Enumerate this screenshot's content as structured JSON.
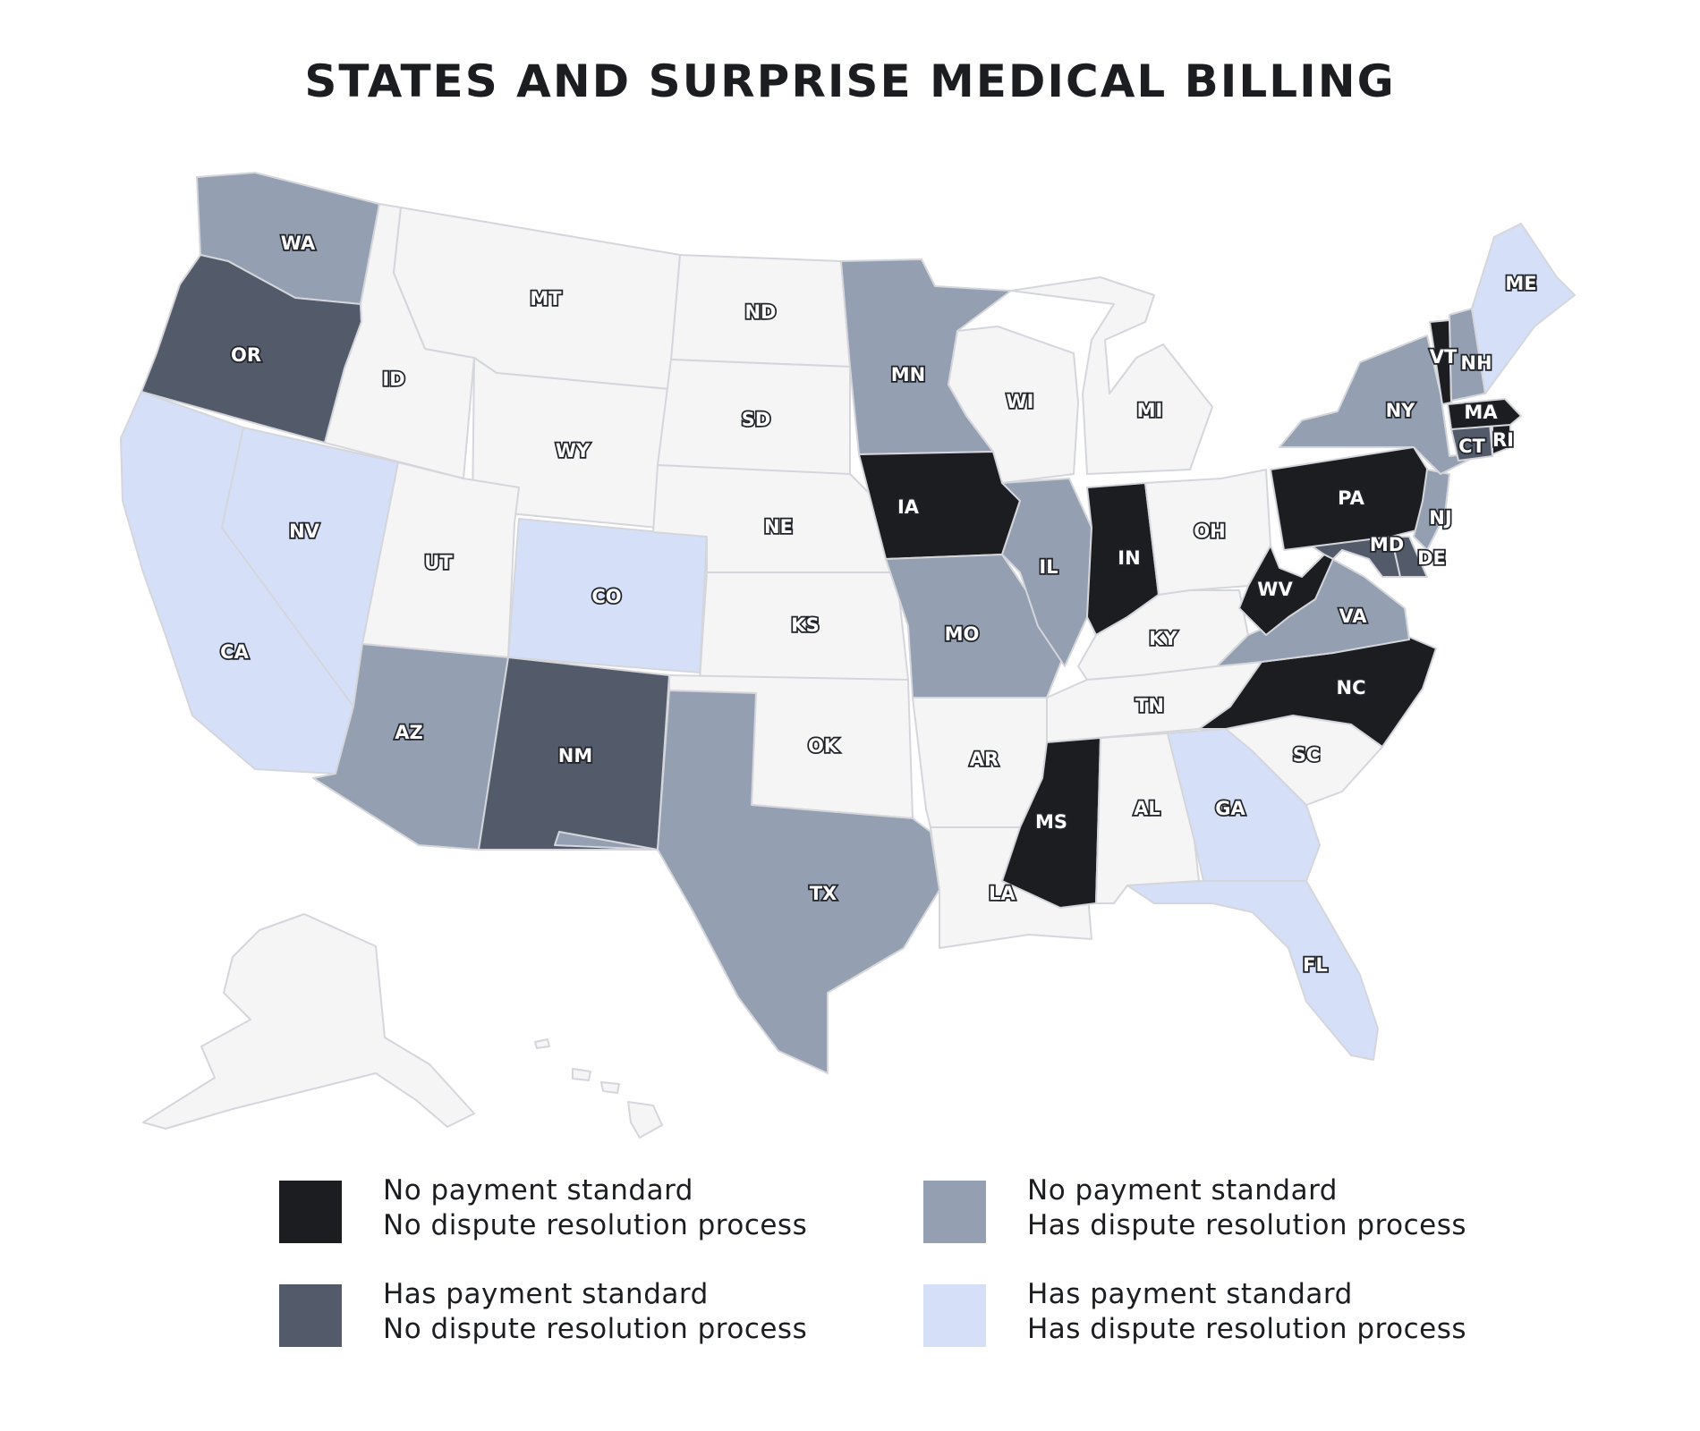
{
  "title": "STATES AND SURPRISE MEDICAL BILLING",
  "colors": {
    "none": "#f5f5f6",
    "no_pay_no_dispute": "#1b1d21",
    "has_pay_no_dispute": "#535a69",
    "no_pay_has_dispute": "#949fb1",
    "has_pay_has_dispute": "#d5e0f8"
  },
  "legend": [
    {
      "category": "no_pay_no_dispute",
      "line1": "No payment standard",
      "line2": "No dispute resolution process"
    },
    {
      "category": "no_pay_has_dispute",
      "line1": "No payment standard",
      "line2": "Has dispute resolution process"
    },
    {
      "category": "has_pay_no_dispute",
      "line1": "Has payment standard",
      "line2": "No dispute resolution process"
    },
    {
      "category": "has_pay_has_dispute",
      "line1": "Has payment standard",
      "line2": "Has dispute resolution process"
    }
  ],
  "states": [
    {
      "abbr": "WA",
      "category": "no_pay_has_dispute"
    },
    {
      "abbr": "OR",
      "category": "has_pay_no_dispute"
    },
    {
      "abbr": "CA",
      "category": "has_pay_has_dispute"
    },
    {
      "abbr": "NV",
      "category": "has_pay_has_dispute"
    },
    {
      "abbr": "ID",
      "category": "none"
    },
    {
      "abbr": "MT",
      "category": "none"
    },
    {
      "abbr": "WY",
      "category": "none"
    },
    {
      "abbr": "UT",
      "category": "none"
    },
    {
      "abbr": "AZ",
      "category": "no_pay_has_dispute"
    },
    {
      "abbr": "CO",
      "category": "has_pay_has_dispute"
    },
    {
      "abbr": "NM",
      "category": "has_pay_no_dispute"
    },
    {
      "abbr": "ND",
      "category": "none"
    },
    {
      "abbr": "SD",
      "category": "none"
    },
    {
      "abbr": "NE",
      "category": "none"
    },
    {
      "abbr": "KS",
      "category": "none"
    },
    {
      "abbr": "OK",
      "category": "none"
    },
    {
      "abbr": "TX",
      "category": "no_pay_has_dispute"
    },
    {
      "abbr": "MN",
      "category": "no_pay_has_dispute"
    },
    {
      "abbr": "IA",
      "category": "no_pay_no_dispute"
    },
    {
      "abbr": "MO",
      "category": "no_pay_has_dispute"
    },
    {
      "abbr": "AR",
      "category": "none"
    },
    {
      "abbr": "LA",
      "category": "none"
    },
    {
      "abbr": "WI",
      "category": "none"
    },
    {
      "abbr": "IL",
      "category": "no_pay_has_dispute"
    },
    {
      "abbr": "MI",
      "category": "none"
    },
    {
      "abbr": "IN",
      "category": "no_pay_no_dispute"
    },
    {
      "abbr": "OH",
      "category": "none"
    },
    {
      "abbr": "KY",
      "category": "none"
    },
    {
      "abbr": "TN",
      "category": "none"
    },
    {
      "abbr": "MS",
      "category": "no_pay_no_dispute"
    },
    {
      "abbr": "AL",
      "category": "none"
    },
    {
      "abbr": "GA",
      "category": "has_pay_has_dispute"
    },
    {
      "abbr": "FL",
      "category": "has_pay_has_dispute"
    },
    {
      "abbr": "SC",
      "category": "none"
    },
    {
      "abbr": "NC",
      "category": "no_pay_no_dispute"
    },
    {
      "abbr": "VA",
      "category": "no_pay_has_dispute"
    },
    {
      "abbr": "WV",
      "category": "no_pay_no_dispute"
    },
    {
      "abbr": "MD",
      "category": "has_pay_no_dispute"
    },
    {
      "abbr": "DE",
      "category": "has_pay_no_dispute"
    },
    {
      "abbr": "PA",
      "category": "no_pay_no_dispute"
    },
    {
      "abbr": "NJ",
      "category": "no_pay_has_dispute"
    },
    {
      "abbr": "NY",
      "category": "no_pay_has_dispute"
    },
    {
      "abbr": "CT",
      "category": "has_pay_no_dispute"
    },
    {
      "abbr": "RI",
      "category": "no_pay_no_dispute"
    },
    {
      "abbr": "MA",
      "category": "no_pay_no_dispute"
    },
    {
      "abbr": "VT",
      "category": "no_pay_no_dispute"
    },
    {
      "abbr": "NH",
      "category": "no_pay_has_dispute"
    },
    {
      "abbr": "ME",
      "category": "has_pay_has_dispute"
    },
    {
      "abbr": "AK",
      "category": "none"
    },
    {
      "abbr": "HI",
      "category": "none"
    }
  ]
}
